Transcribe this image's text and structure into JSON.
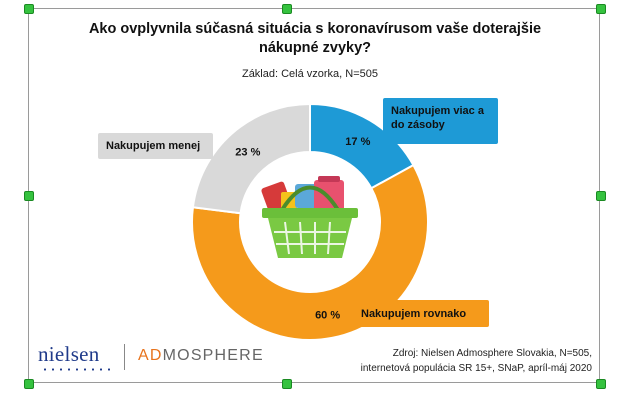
{
  "chart_data": {
    "type": "pie",
    "title": "Ako ovplyvnila súčasná situácia s koronavírusom vaše doterajšie nákupné zvyky?",
    "subtitle": "Základ: Celá vzorka, N=505",
    "slices": [
      {
        "label": "Nakupujem viac a do zásoby",
        "value": 17,
        "display": "17 %",
        "color": "#1e9ad6"
      },
      {
        "label": "Nakupujem rovnako",
        "value": 60,
        "display": "60 %",
        "color": "#f59a1b"
      },
      {
        "label": "Nakupujem menej",
        "value": 23,
        "display": "23 %",
        "color": "#d9d9d9"
      }
    ]
  },
  "callouts": {
    "more": "Nakupujem viac a do zásoby",
    "same": "Nakupujem rovnako",
    "less": "Nakupujem menej"
  },
  "logos": {
    "nielsen": "nielsen",
    "admosphere_ad": "AD",
    "admosphere_rest": "MOSPHERE"
  },
  "source": {
    "line1": "Zdroj: Nielsen Admosphere Slovakia, N=505,",
    "line2": "internetová populácia SR 15+, SNaP, apríl-máj 2020"
  },
  "icons": {
    "center": "shopping-basket-icon"
  }
}
